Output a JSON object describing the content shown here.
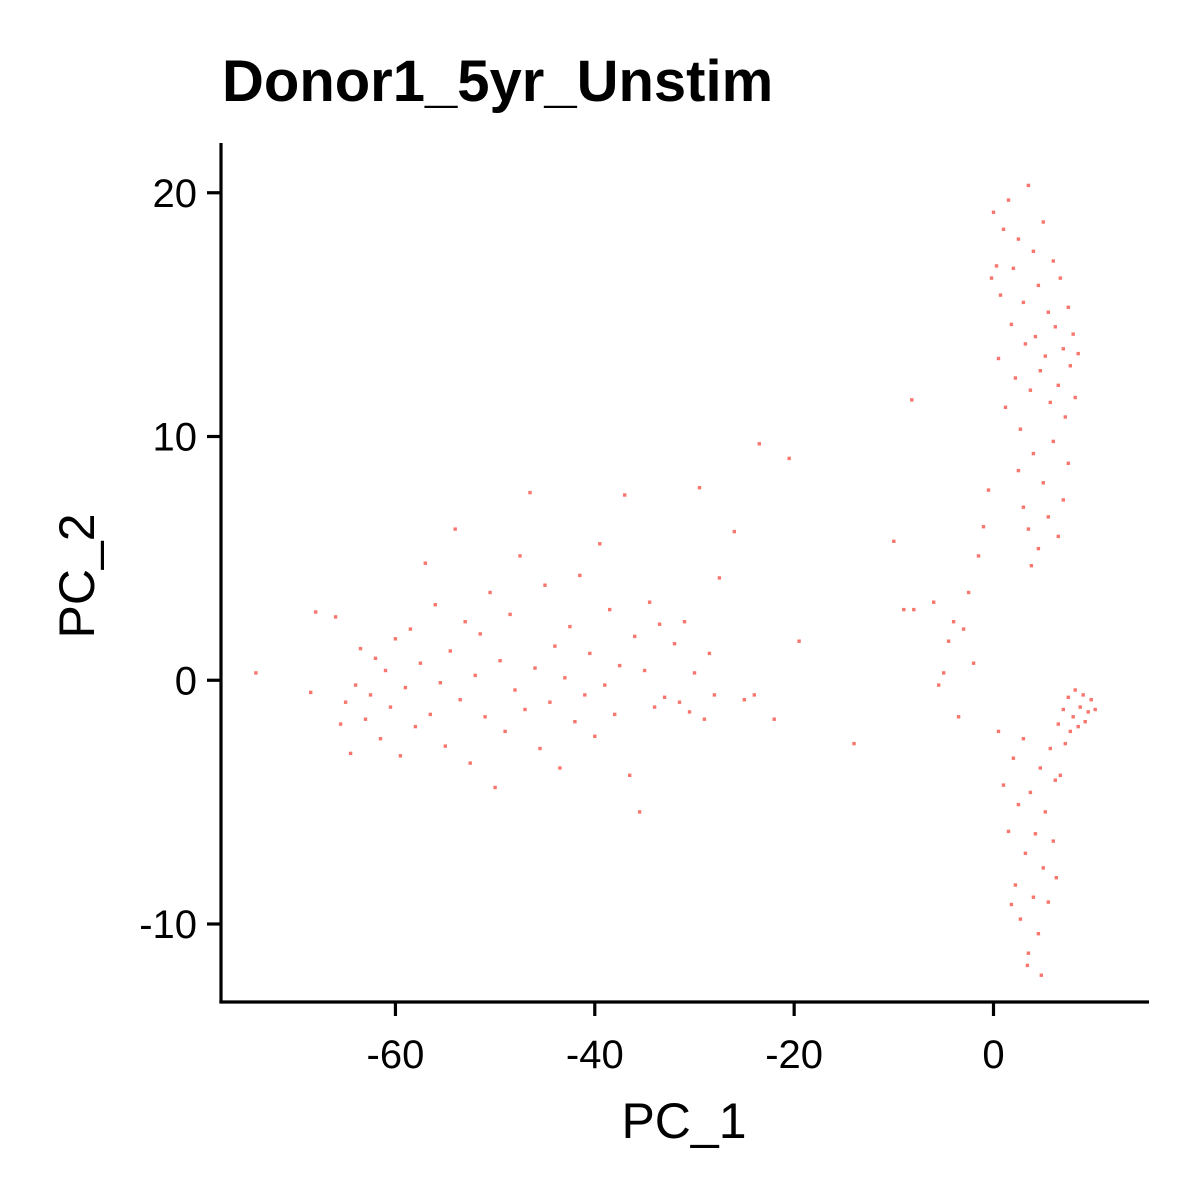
{
  "chart_data": {
    "type": "scatter",
    "title": "Donor1_5yr_Unstim",
    "xlabel": "PC_1",
    "ylabel": "PC_2",
    "xlim": [
      -77.5,
      15.5
    ],
    "ylim": [
      -13.2,
      22
    ],
    "x_ticks": [
      -60,
      -40,
      -20,
      0
    ],
    "y_ticks": [
      -10,
      0,
      10,
      20
    ],
    "point_color": "#F8766D",
    "legend": "none",
    "grid": false,
    "series": [
      {
        "points": [
          [
            -74,
            0.3
          ],
          [
            -68.5,
            -0.5
          ],
          [
            -68,
            2.8
          ],
          [
            -66,
            2.6
          ],
          [
            -65.5,
            -1.8
          ],
          [
            -65,
            -0.9
          ],
          [
            -64.5,
            -3
          ],
          [
            -64,
            -0.2
          ],
          [
            -63.5,
            1.3
          ],
          [
            -63,
            -1.6
          ],
          [
            -62.5,
            -0.6
          ],
          [
            -62,
            0.9
          ],
          [
            -61.5,
            -2.4
          ],
          [
            -61,
            0.4
          ],
          [
            -60.5,
            -1.1
          ],
          [
            -60,
            1.7
          ],
          [
            -59.5,
            -3.1
          ],
          [
            -59,
            -0.3
          ],
          [
            -58.5,
            2.1
          ],
          [
            -58,
            -1.9
          ],
          [
            -57.5,
            0.7
          ],
          [
            -57,
            4.8
          ],
          [
            -56.5,
            -1.4
          ],
          [
            -56,
            3.1
          ],
          [
            -55.5,
            -0.1
          ],
          [
            -55,
            -2.7
          ],
          [
            -54.5,
            1.2
          ],
          [
            -54,
            6.2
          ],
          [
            -53.5,
            -0.8
          ],
          [
            -53,
            2.4
          ],
          [
            -52.5,
            -3.4
          ],
          [
            -52,
            0.2
          ],
          [
            -51.5,
            1.9
          ],
          [
            -51,
            -1.5
          ],
          [
            -50.5,
            3.6
          ],
          [
            -50,
            -4.4
          ],
          [
            -49.5,
            0.8
          ],
          [
            -49,
            -2.1
          ],
          [
            -48.5,
            2.7
          ],
          [
            -48,
            -0.4
          ],
          [
            -47.5,
            5.1
          ],
          [
            -47,
            -1.2
          ],
          [
            -46.5,
            7.7
          ],
          [
            -46,
            0.5
          ],
          [
            -45.5,
            -2.8
          ],
          [
            -45,
            3.9
          ],
          [
            -44.5,
            -0.9
          ],
          [
            -44,
            1.4
          ],
          [
            -43.5,
            -3.6
          ],
          [
            -43,
            0.1
          ],
          [
            -42.5,
            2.2
          ],
          [
            -42,
            -1.7
          ],
          [
            -41.5,
            4.3
          ],
          [
            -41,
            -0.6
          ],
          [
            -40.5,
            1.1
          ],
          [
            -40,
            -2.3
          ],
          [
            -39.5,
            5.6
          ],
          [
            -39,
            -0.2
          ],
          [
            -38.5,
            2.9
          ],
          [
            -38,
            -1.4
          ],
          [
            -37.5,
            0.6
          ],
          [
            -37,
            7.6
          ],
          [
            -36.5,
            -3.9
          ],
          [
            -36,
            1.8
          ],
          [
            -35.5,
            -5.4
          ],
          [
            -35,
            0.4
          ],
          [
            -34.5,
            3.2
          ],
          [
            -34,
            -1.1
          ],
          [
            -33.5,
            2.3
          ],
          [
            -33,
            -0.7
          ],
          [
            -32,
            1.5
          ],
          [
            -31.5,
            -0.9
          ],
          [
            -31,
            2.4
          ],
          [
            -30.5,
            -1.3
          ],
          [
            -30,
            0.3
          ],
          [
            -29.5,
            7.9
          ],
          [
            -29,
            -1.6
          ],
          [
            -28.5,
            1.1
          ],
          [
            -28,
            -0.6
          ],
          [
            -27.5,
            4.2
          ],
          [
            -26,
            6.1
          ],
          [
            -25,
            -0.8
          ],
          [
            -24,
            -0.6
          ],
          [
            -23.5,
            9.7
          ],
          [
            -22,
            -1.6
          ],
          [
            -20.5,
            9.1
          ],
          [
            -19.5,
            1.6
          ],
          [
            -14,
            -2.6
          ],
          [
            -10,
            5.7
          ],
          [
            -9,
            2.9
          ],
          [
            -8.2,
            11.5
          ],
          [
            -8,
            2.9
          ],
          [
            -6,
            3.2
          ],
          [
            -5.5,
            -0.2
          ],
          [
            -5,
            0.3
          ],
          [
            -4.5,
            1.6
          ],
          [
            -4,
            2.4
          ],
          [
            -3.5,
            -1.5
          ],
          [
            -3,
            2.1
          ],
          [
            -2.5,
            3.6
          ],
          [
            -2,
            0.7
          ],
          [
            -1.5,
            5.1
          ],
          [
            -1,
            6.3
          ],
          [
            -0.5,
            7.8
          ],
          [
            -0.2,
            16.5
          ],
          [
            0,
            19.2
          ],
          [
            0.3,
            17
          ],
          [
            0.5,
            13.2
          ],
          [
            0.7,
            15.8
          ],
          [
            1,
            18.5
          ],
          [
            1.2,
            11.2
          ],
          [
            1.5,
            19.7
          ],
          [
            1.8,
            14.6
          ],
          [
            2,
            16.9
          ],
          [
            2.2,
            12.4
          ],
          [
            2.5,
            18.1
          ],
          [
            2.7,
            10.3
          ],
          [
            3,
            15.5
          ],
          [
            3.2,
            13.8
          ],
          [
            3.5,
            20.3
          ],
          [
            3.7,
            11.9
          ],
          [
            4,
            17.6
          ],
          [
            4.2,
            14.1
          ],
          [
            4.5,
            16.2
          ],
          [
            4.7,
            12.7
          ],
          [
            5,
            18.8
          ],
          [
            5.2,
            13.3
          ],
          [
            5.5,
            15.1
          ],
          [
            5.7,
            11.4
          ],
          [
            6,
            17.2
          ],
          [
            6.2,
            14.5
          ],
          [
            6.5,
            12.1
          ],
          [
            6.7,
            16.5
          ],
          [
            7,
            13.6
          ],
          [
            7.2,
            10.8
          ],
          [
            7.5,
            15.3
          ],
          [
            7.7,
            12.9
          ],
          [
            8,
            14.2
          ],
          [
            8.2,
            11.6
          ],
          [
            8.5,
            13.4
          ],
          [
            2.5,
            8.6
          ],
          [
            3,
            7.1
          ],
          [
            3.5,
            6.2
          ],
          [
            4,
            9.3
          ],
          [
            4.5,
            5.4
          ],
          [
            5,
            8.1
          ],
          [
            5.5,
            6.7
          ],
          [
            6,
            9.8
          ],
          [
            6.5,
            5.9
          ],
          [
            7,
            7.4
          ],
          [
            7.5,
            8.9
          ],
          [
            3.8,
            4.7
          ],
          [
            0.5,
            -2.1
          ],
          [
            1,
            -4.3
          ],
          [
            1.5,
            -6.2
          ],
          [
            2,
            -3.2
          ],
          [
            2.2,
            -8.4
          ],
          [
            2.5,
            -5.1
          ],
          [
            2.7,
            -9.8
          ],
          [
            3,
            -2.4
          ],
          [
            3.2,
            -7.1
          ],
          [
            3.5,
            -11.2
          ],
          [
            3.7,
            -4.6
          ],
          [
            4,
            -8.9
          ],
          [
            4.2,
            -6.3
          ],
          [
            4.5,
            -10.4
          ],
          [
            4.7,
            -3.6
          ],
          [
            5,
            -7.7
          ],
          [
            5.2,
            -5.4
          ],
          [
            5.5,
            -9.1
          ],
          [
            5.7,
            -2.8
          ],
          [
            6,
            -6.6
          ],
          [
            6.2,
            -4.1
          ],
          [
            6.5,
            -1.8
          ],
          [
            6.7,
            -3.9
          ],
          [
            7,
            -1.2
          ],
          [
            7.2,
            -2.6
          ],
          [
            7.5,
            -0.7
          ],
          [
            7.7,
            -2.1
          ],
          [
            8,
            -1.5
          ],
          [
            8.2,
            -0.4
          ],
          [
            8.5,
            -1.9
          ],
          [
            8.7,
            -1.1
          ],
          [
            9,
            -0.6
          ],
          [
            9.2,
            -1.7
          ],
          [
            9.5,
            -1.3
          ],
          [
            9.8,
            -0.8
          ],
          [
            10.2,
            -1.2
          ],
          [
            3.4,
            -11.7
          ],
          [
            4.8,
            -12.1
          ],
          [
            1.8,
            -9.2
          ],
          [
            6.3,
            -8.1
          ]
        ]
      }
    ]
  }
}
